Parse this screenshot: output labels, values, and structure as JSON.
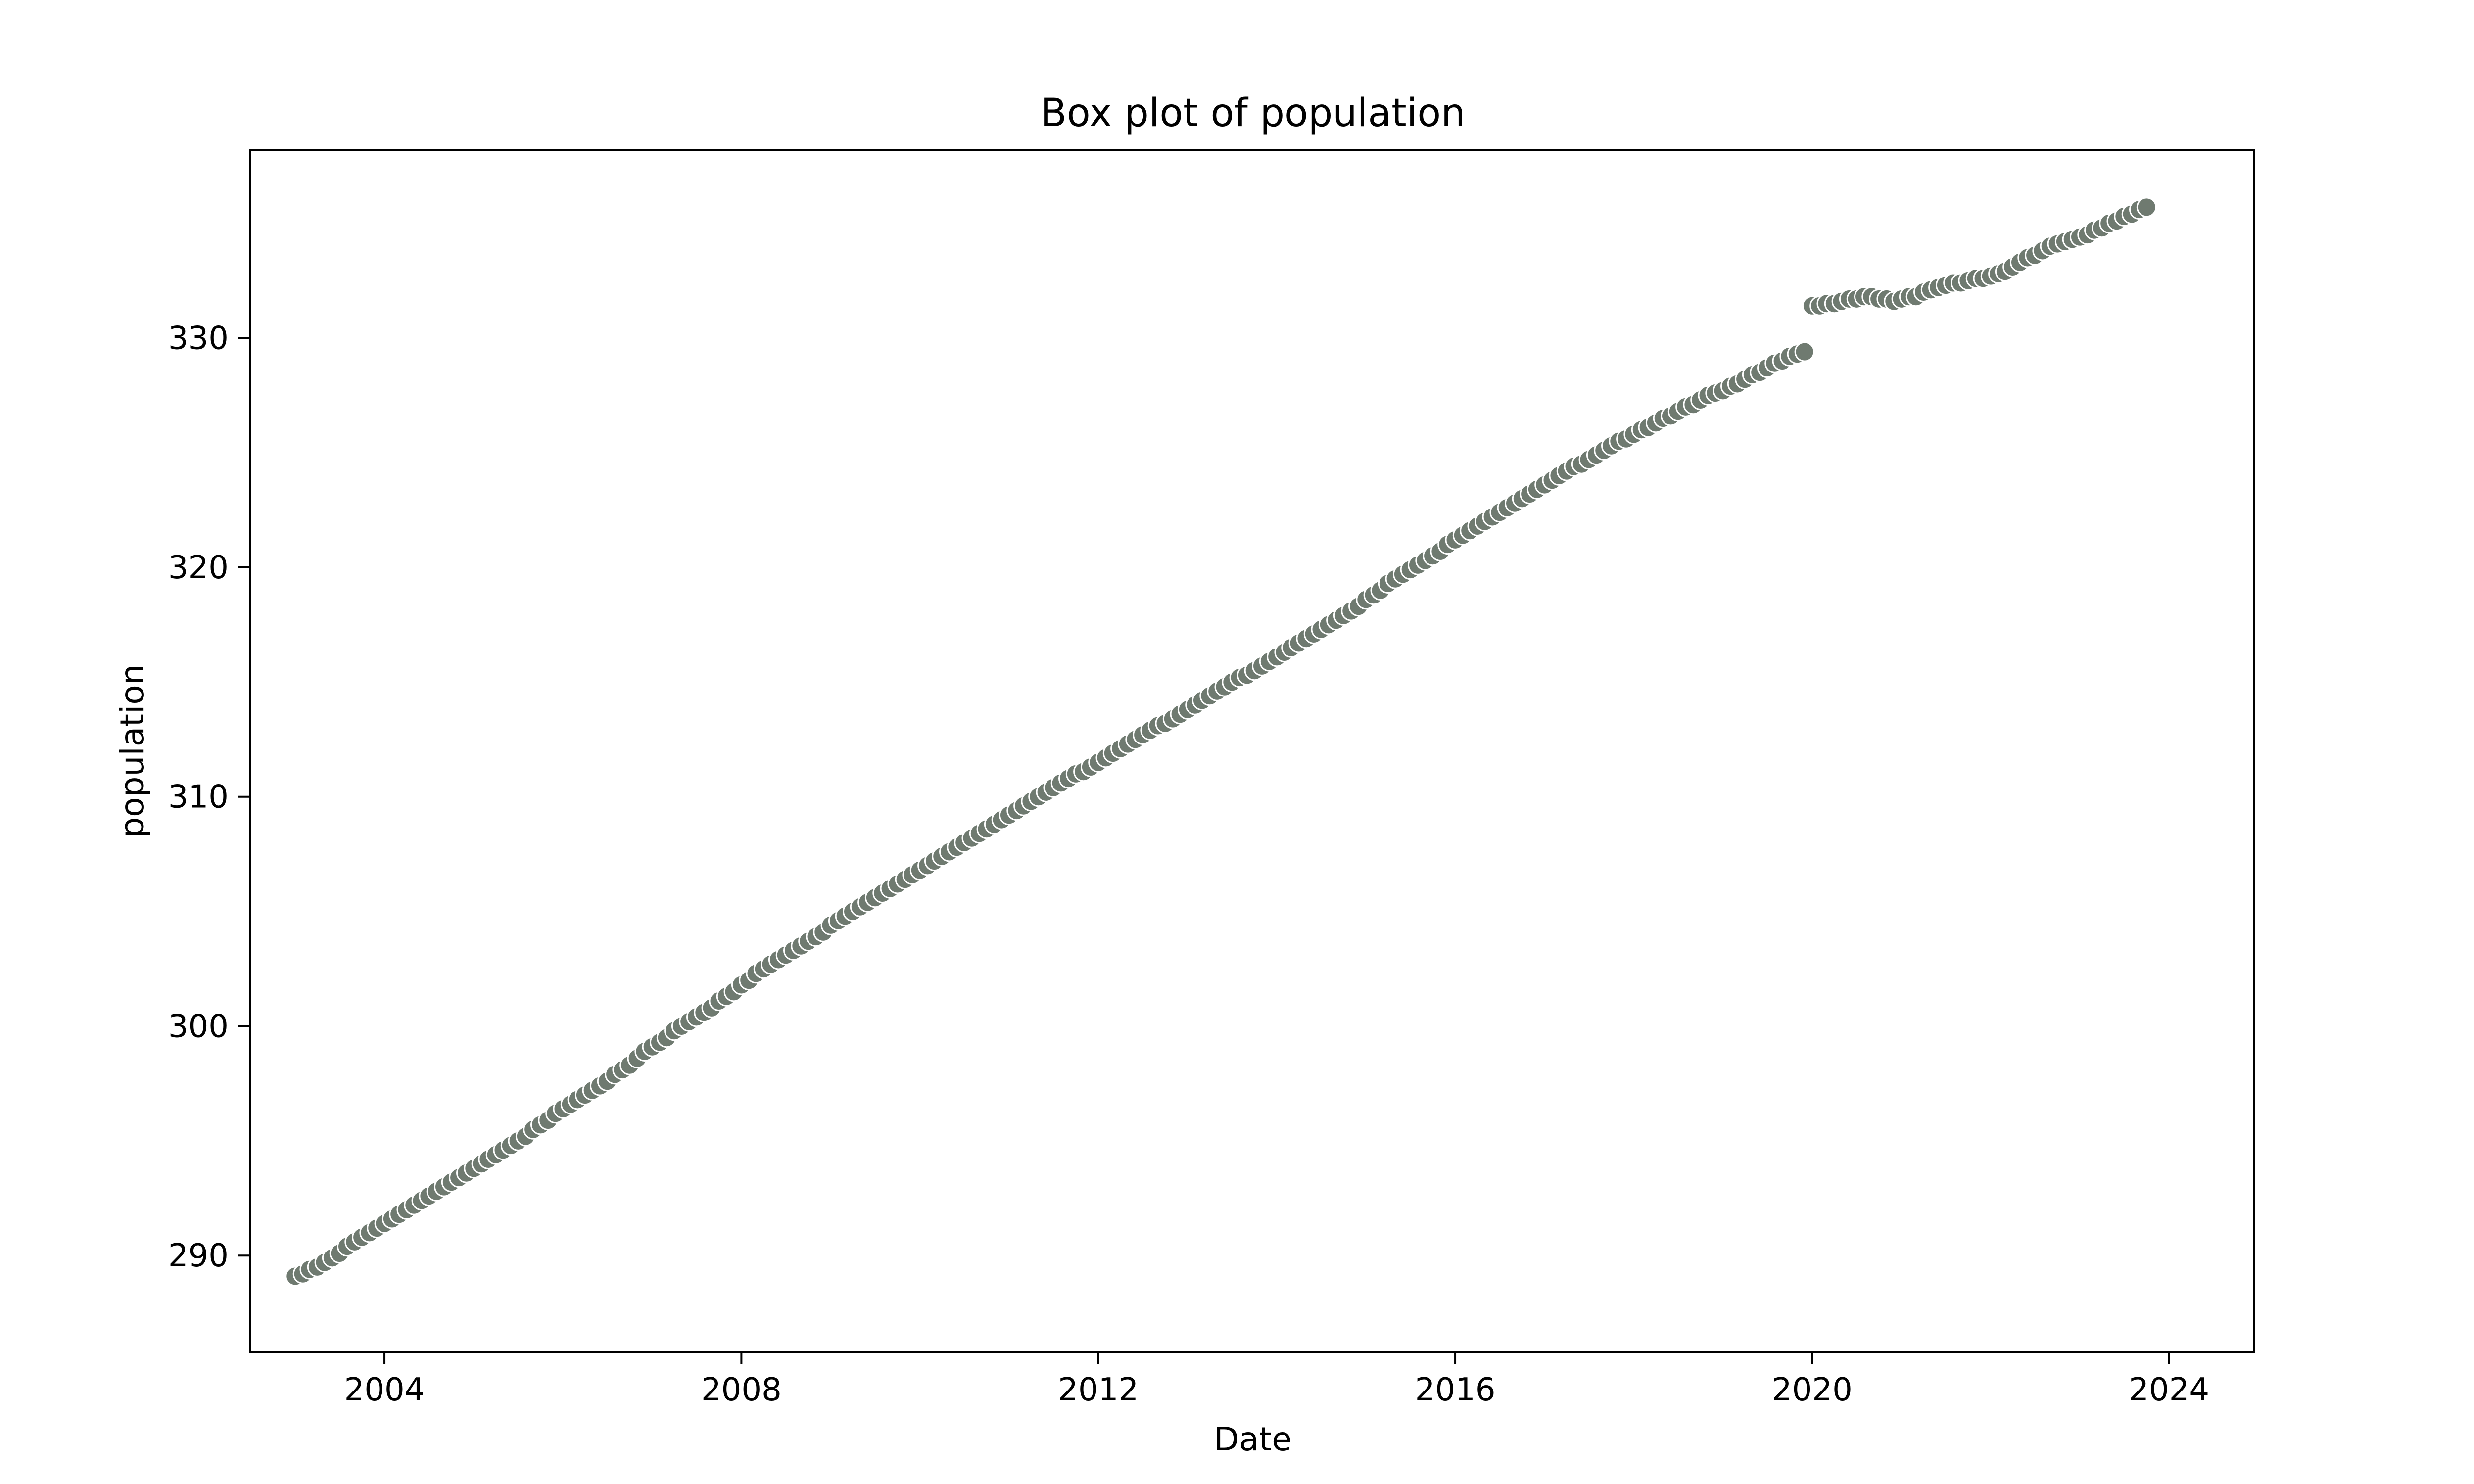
{
  "chart_data": {
    "type": "scatter",
    "title": "Box plot of population",
    "xlabel": "Date",
    "ylabel": "population",
    "x_axis": "date",
    "xlim": [
      "2002-07-01",
      "2024-12-15"
    ],
    "ylim": [
      285.8,
      338.2
    ],
    "xticks": [
      "2004",
      "2008",
      "2012",
      "2016",
      "2020",
      "2024"
    ],
    "yticks": [
      290,
      300,
      310,
      320,
      330
    ],
    "grid": false,
    "legend": "none",
    "marker_color": "#6f7a70",
    "marker_edge_color": "#ffffff",
    "series": [
      {
        "start": "2003-01",
        "frequency": "monthly",
        "values": [
          289.1,
          289.2,
          289.4,
          289.5,
          289.7,
          289.9,
          290.1,
          290.4,
          290.6,
          290.8,
          291.0,
          291.2,
          291.4,
          291.6,
          291.8,
          292.0,
          292.2,
          292.4,
          292.6,
          292.8,
          293.0,
          293.2,
          293.4,
          293.6,
          293.8,
          294.0,
          294.2,
          294.4,
          294.6,
          294.8,
          295.0,
          295.2,
          295.5,
          295.7,
          295.9,
          296.2,
          296.4,
          296.6,
          296.8,
          297.0,
          297.2,
          297.4,
          297.6,
          297.9,
          298.1,
          298.3,
          298.6,
          298.9,
          299.1,
          299.3,
          299.5,
          299.8,
          300.0,
          300.2,
          300.4,
          300.6,
          300.8,
          301.1,
          301.3,
          301.5,
          301.8,
          302.0,
          302.3,
          302.5,
          302.7,
          302.9,
          303.1,
          303.3,
          303.5,
          303.7,
          303.9,
          304.1,
          304.4,
          304.6,
          304.8,
          305.0,
          305.2,
          305.4,
          305.6,
          305.8,
          306.0,
          306.2,
          306.4,
          306.6,
          306.8,
          307.0,
          307.2,
          307.4,
          307.6,
          307.8,
          308.0,
          308.2,
          308.4,
          308.6,
          308.8,
          309.0,
          309.2,
          309.4,
          309.6,
          309.8,
          310.0,
          310.2,
          310.4,
          310.6,
          310.8,
          311.0,
          311.1,
          311.3,
          311.5,
          311.7,
          311.9,
          312.1,
          312.3,
          312.5,
          312.7,
          312.9,
          313.1,
          313.2,
          313.4,
          313.6,
          313.8,
          314.0,
          314.2,
          314.4,
          314.6,
          314.8,
          315.0,
          315.2,
          315.3,
          315.5,
          315.7,
          315.9,
          316.1,
          316.3,
          316.5,
          316.7,
          316.9,
          317.1,
          317.3,
          317.5,
          317.7,
          317.9,
          318.1,
          318.3,
          318.6,
          318.8,
          319.0,
          319.3,
          319.5,
          319.7,
          319.9,
          320.1,
          320.3,
          320.5,
          320.7,
          321.0,
          321.2,
          321.4,
          321.6,
          321.8,
          322.0,
          322.2,
          322.4,
          322.6,
          322.8,
          323.0,
          323.2,
          323.4,
          323.6,
          323.8,
          324.0,
          324.2,
          324.4,
          324.5,
          324.7,
          324.9,
          325.1,
          325.3,
          325.5,
          325.6,
          325.8,
          326.0,
          326.1,
          326.3,
          326.5,
          326.6,
          326.8,
          327.0,
          327.1,
          327.3,
          327.5,
          327.6,
          327.7,
          327.9,
          328.0,
          328.2,
          328.4,
          328.5,
          328.7,
          328.9,
          329.0,
          329.2,
          329.3,
          329.4,
          331.4,
          331.4,
          331.5,
          331.5,
          331.6,
          331.7,
          331.7,
          331.8,
          331.8,
          331.7,
          331.7,
          331.6,
          331.7,
          331.8,
          331.8,
          332.0,
          332.1,
          332.2,
          332.3,
          332.4,
          332.4,
          332.5,
          332.6,
          332.6,
          332.7,
          332.8,
          332.9,
          333.1,
          333.3,
          333.5,
          333.6,
          333.8,
          334.0,
          334.1,
          334.2,
          334.3,
          334.4,
          334.5,
          334.7,
          334.8,
          335.0,
          335.1,
          335.3,
          335.4,
          335.6,
          335.7
        ]
      }
    ]
  }
}
